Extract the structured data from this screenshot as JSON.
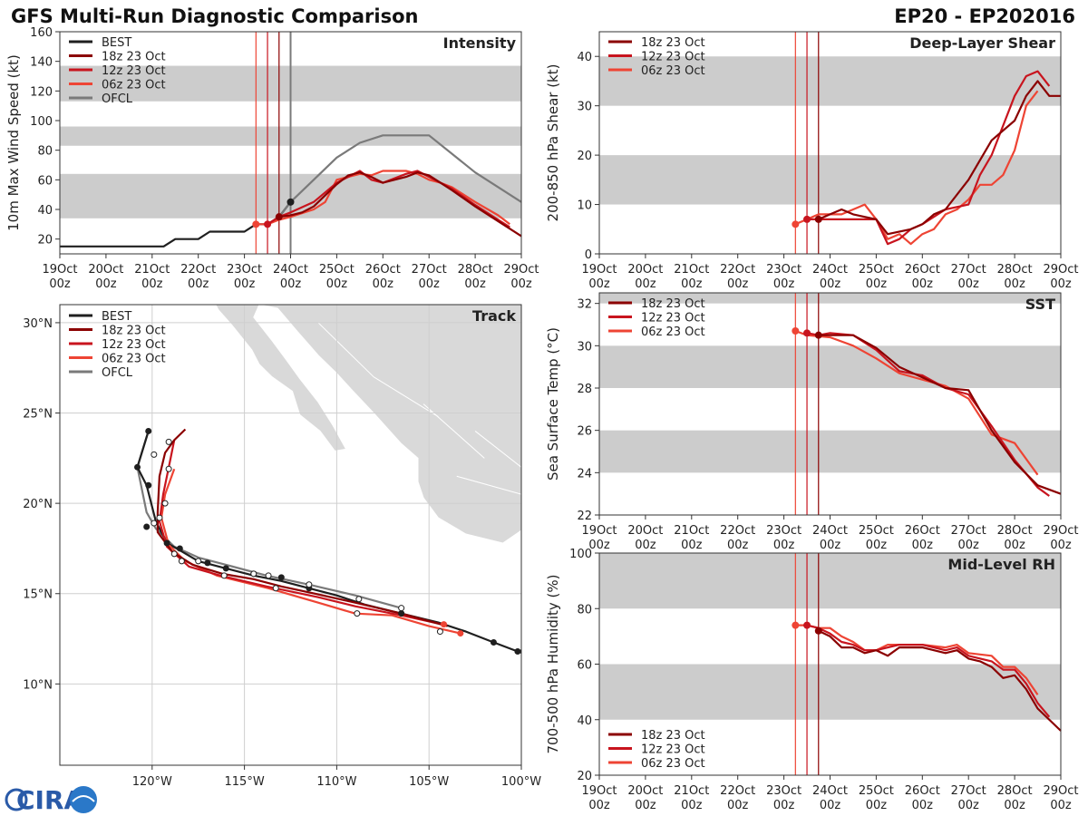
{
  "page": {
    "title_left": "GFS Multi-Run Diagnostic Comparison",
    "title_right": "EP20 - EP202016",
    "logo_text": "CIRA"
  },
  "colors": {
    "best": "#1f1f1f",
    "r18": "#8b0000",
    "r12": "#c8141e",
    "r06": "#ee4434",
    "ofcl": "#7a7a7a",
    "band": "#cccccc",
    "land": "#d9d9d9",
    "grid": "#cfcfcf"
  },
  "time_ticks": [
    "19Oct",
    "20Oct",
    "21Oct",
    "22Oct",
    "23Oct",
    "24Oct",
    "25Oct",
    "26Oct",
    "27Oct",
    "28Oct",
    "29Oct"
  ],
  "time_sub": "00z",
  "run_lines": [
    {
      "x": 4.25,
      "run": "r06"
    },
    {
      "x": 4.5,
      "run": "r12"
    },
    {
      "x": 4.75,
      "run": "r18"
    }
  ],
  "chart_data": [
    {
      "id": "intensity",
      "type": "line",
      "title": "Intensity",
      "ylabel": "10m Max Wind Speed (kt)",
      "xlim": [
        0,
        10
      ],
      "ylim": [
        10,
        160
      ],
      "yticks": [
        20,
        40,
        60,
        80,
        100,
        120,
        140,
        160
      ],
      "bands": [
        [
          34,
          64
        ],
        [
          83,
          96
        ],
        [
          113,
          137
        ]
      ],
      "legend": [
        "BEST",
        "18z 23 Oct",
        "12z 23 Oct",
        "06z 23 Oct",
        "OFCL"
      ],
      "extra_vline": {
        "x": 5.0,
        "color": "#7a7a7a"
      },
      "series": [
        {
          "key": "best",
          "x": [
            0,
            0.25,
            0.5,
            0.75,
            1,
            1.25,
            1.5,
            1.75,
            2,
            2.25,
            2.5,
            2.75,
            3,
            3.25,
            3.5,
            3.75,
            4,
            4.25,
            4.5,
            4.75,
            5
          ],
          "y": [
            15,
            15,
            15,
            15,
            15,
            15,
            15,
            15,
            15,
            15,
            20,
            20,
            20,
            25,
            25,
            25,
            25,
            30,
            30,
            35,
            45
          ]
        },
        {
          "key": "ofcl",
          "x": [
            4.75,
            5,
            5.5,
            6,
            6.5,
            7,
            8,
            9,
            10
          ],
          "y": [
            35,
            45,
            60,
            75,
            85,
            90,
            90,
            65,
            45
          ]
        },
        {
          "key": "r18",
          "x": [
            4.75,
            5,
            5.25,
            5.5,
            6,
            6.25,
            6.5,
            6.75,
            7,
            7.5,
            7.75,
            8,
            8.5,
            9,
            9.5,
            10
          ],
          "y": [
            35,
            36,
            38,
            42,
            57,
            63,
            65,
            62,
            58,
            62,
            65,
            63,
            53,
            42,
            32,
            22
          ]
        },
        {
          "key": "r12",
          "x": [
            4.5,
            4.75,
            5,
            5.5,
            6,
            6.25,
            6.5,
            6.75,
            7,
            7.5,
            7.75,
            8,
            8.5,
            9,
            9.5,
            9.75
          ],
          "y": [
            30,
            35,
            38,
            45,
            58,
            62,
            66,
            60,
            58,
            64,
            66,
            62,
            54,
            43,
            33,
            28
          ]
        },
        {
          "key": "r06",
          "x": [
            4.25,
            4.5,
            4.75,
            5,
            5.5,
            5.75,
            6,
            6.25,
            6.5,
            6.75,
            7,
            7.5,
            7.75,
            8,
            8.25,
            8.5,
            9,
            9.5,
            9.75
          ],
          "y": [
            30,
            30,
            33,
            35,
            40,
            45,
            60,
            62,
            64,
            63,
            66,
            66,
            64,
            60,
            58,
            55,
            45,
            36,
            30
          ]
        }
      ],
      "markers": [
        {
          "key": "best",
          "x": 5.0,
          "y": 45
        },
        {
          "key": "r18",
          "x": 4.75,
          "y": 35
        },
        {
          "key": "r12",
          "x": 4.5,
          "y": 30
        },
        {
          "key": "r06",
          "x": 4.25,
          "y": 30
        }
      ]
    },
    {
      "id": "shear",
      "type": "line",
      "title": "Deep-Layer Shear",
      "ylabel": "200-850 hPa Shear (kt)",
      "xlim": [
        0,
        10
      ],
      "ylim": [
        0,
        45
      ],
      "yticks": [
        0,
        10,
        20,
        30,
        40
      ],
      "bands": [
        [
          10,
          20
        ],
        [
          30,
          40
        ]
      ],
      "legend": [
        "18z 23 Oct",
        "12z 23 Oct",
        "06z 23 Oct"
      ],
      "series": [
        {
          "key": "r18",
          "x": [
            4.75,
            5,
            5.25,
            5.5,
            6,
            6.25,
            6.75,
            7,
            7.25,
            7.5,
            8,
            8.5,
            9,
            9.25,
            9.5,
            9.75,
            10
          ],
          "y": [
            7,
            8,
            9,
            8,
            7,
            4,
            5,
            6,
            8,
            9,
            15,
            23,
            27,
            32,
            35,
            32,
            32
          ]
        },
        {
          "key": "r12",
          "x": [
            4.5,
            4.75,
            5,
            5.25,
            5.5,
            6,
            6.25,
            6.5,
            6.75,
            7,
            7.5,
            8,
            8.25,
            8.5,
            9,
            9.25,
            9.5,
            9.75
          ],
          "y": [
            7,
            7,
            7,
            7,
            7,
            7,
            2,
            3,
            5,
            6,
            9,
            10,
            16,
            20,
            32,
            36,
            37,
            34
          ]
        },
        {
          "key": "r06",
          "x": [
            4.25,
            4.5,
            4.75,
            5,
            5.25,
            5.5,
            5.75,
            6,
            6.25,
            6.5,
            6.75,
            7,
            7.25,
            7.5,
            7.75,
            8,
            8.25,
            8.5,
            8.75,
            9,
            9.25,
            9.5
          ],
          "y": [
            6,
            7,
            8,
            8,
            8,
            9,
            10,
            7,
            3,
            4,
            2,
            4,
            5,
            8,
            9,
            11,
            14,
            14,
            16,
            21,
            30,
            33
          ]
        }
      ],
      "markers": [
        {
          "key": "r18",
          "x": 4.75,
          "y": 7
        },
        {
          "key": "r12",
          "x": 4.5,
          "y": 7
        },
        {
          "key": "r06",
          "x": 4.25,
          "y": 6
        }
      ]
    },
    {
      "id": "sst",
      "type": "line",
      "title": "SST",
      "ylabel": "Sea Surface Temp (°C)",
      "xlim": [
        0,
        10
      ],
      "ylim": [
        22,
        32.5
      ],
      "yticks": [
        22,
        24,
        26,
        28,
        30,
        32
      ],
      "bands": [
        [
          24,
          26
        ],
        [
          28,
          30
        ],
        [
          32,
          32.5
        ]
      ],
      "legend": [
        "18z 23 Oct",
        "12z 23 Oct",
        "06z 23 Oct"
      ],
      "series": [
        {
          "key": "r18",
          "x": [
            4.75,
            5,
            5.5,
            6,
            6.5,
            7,
            7.5,
            8,
            8.5,
            9,
            9.5,
            10
          ],
          "y": [
            30.5,
            30.5,
            30.5,
            29.9,
            29,
            28.5,
            28,
            27.9,
            26,
            24.5,
            23.4,
            23.0
          ]
        },
        {
          "key": "r12",
          "x": [
            4.5,
            4.75,
            5,
            5.5,
            6,
            6.5,
            7,
            7.5,
            8,
            8.5,
            9,
            9.5,
            9.75
          ],
          "y": [
            30.6,
            30.5,
            30.6,
            30.5,
            29.8,
            28.8,
            28.6,
            28,
            27.7,
            26.2,
            24.6,
            23.3,
            22.9
          ]
        },
        {
          "key": "r06",
          "x": [
            4.25,
            4.5,
            5,
            5.5,
            6,
            6.5,
            7,
            7.5,
            8,
            8.5,
            9,
            9.5
          ],
          "y": [
            30.7,
            30.5,
            30.4,
            30.0,
            29.4,
            28.7,
            28.4,
            28.1,
            27.5,
            25.8,
            25.4,
            23.9
          ]
        }
      ],
      "markers": [
        {
          "key": "r18",
          "x": 4.75,
          "y": 30.5
        },
        {
          "key": "r12",
          "x": 4.5,
          "y": 30.6
        },
        {
          "key": "r06",
          "x": 4.25,
          "y": 30.7
        }
      ]
    },
    {
      "id": "rh",
      "type": "line",
      "title": "Mid-Level RH",
      "ylabel": "700-500 hPa Humidity (%)",
      "xlim": [
        0,
        10
      ],
      "ylim": [
        20,
        100
      ],
      "yticks": [
        20,
        40,
        60,
        80,
        100
      ],
      "bands": [
        [
          40,
          60
        ],
        [
          80,
          100
        ]
      ],
      "legend": [
        "18z 23 Oct",
        "12z 23 Oct",
        "06z 23 Oct"
      ],
      "legend_pos": "bottom-left",
      "series": [
        {
          "key": "r18",
          "x": [
            4.75,
            5,
            5.25,
            5.5,
            5.75,
            6,
            6.25,
            6.5,
            7,
            7.5,
            7.75,
            8,
            8.25,
            8.5,
            8.75,
            9,
            9.25,
            9.5,
            10
          ],
          "y": [
            72,
            70,
            66,
            66,
            64,
            65,
            63,
            66,
            66,
            64,
            65,
            62,
            61,
            59,
            55,
            56,
            51,
            44,
            36
          ]
        },
        {
          "key": "r12",
          "x": [
            4.5,
            4.75,
            5,
            5.25,
            5.5,
            5.75,
            6,
            6.5,
            7,
            7.5,
            7.75,
            8,
            8.5,
            8.75,
            9,
            9.25,
            9.5,
            9.75
          ],
          "y": [
            74,
            73,
            71,
            68,
            67,
            65,
            65,
            67,
            67,
            65,
            66,
            63,
            61,
            58,
            58,
            53,
            46,
            41
          ]
        },
        {
          "key": "r06",
          "x": [
            4.25,
            4.5,
            4.75,
            5,
            5.25,
            5.5,
            5.75,
            6,
            6.25,
            6.5,
            7,
            7.5,
            7.75,
            8,
            8.5,
            8.75,
            9,
            9.25,
            9.5
          ],
          "y": [
            74,
            74,
            73,
            73,
            70,
            68,
            65,
            65,
            67,
            67,
            67,
            66,
            67,
            64,
            63,
            59,
            59,
            55,
            49
          ]
        }
      ],
      "markers": [
        {
          "key": "r18",
          "x": 4.75,
          "y": 72
        },
        {
          "key": "r12",
          "x": 4.5,
          "y": 74
        },
        {
          "key": "r06",
          "x": 4.25,
          "y": 74
        }
      ]
    },
    {
      "id": "track",
      "type": "scatter",
      "title": "Track",
      "xlim": [
        -125,
        -100
      ],
      "ylim": [
        5.5,
        31
      ],
      "xticks": [
        -120,
        -115,
        -110,
        -105,
        -100
      ],
      "xtick_labels": [
        "120°W",
        "115°W",
        "110°W",
        "105°W",
        "100°W"
      ],
      "yticks": [
        10,
        15,
        20,
        25,
        30
      ],
      "ytick_labels": [
        "10°N",
        "15°N",
        "20°N",
        "25°N",
        "30°N"
      ],
      "legend": [
        "BEST",
        "18z 23 Oct",
        "12z 23 Oct",
        "06z 23 Oct",
        "OFCL"
      ],
      "series": [
        {
          "key": "best",
          "lon": [
            -99.5,
            -100.2,
            -101.5,
            -103,
            -104.5,
            -106.5,
            -108.5,
            -110,
            -111.5,
            -113,
            -114.5,
            -116,
            -117.5,
            -118.5,
            -119.2,
            -119.8,
            -120.3,
            -120.8,
            -120.2
          ],
          "lat": [
            11.6,
            11.8,
            12.3,
            12.9,
            13.4,
            13.9,
            14.4,
            14.9,
            15.3,
            15.7,
            16.0,
            16.4,
            16.8,
            17.4,
            17.8,
            19.0,
            21.0,
            22.0,
            24.0
          ]
        },
        {
          "key": "ofcl",
          "lon": [
            -106.5,
            -109,
            -111.5,
            -113.8,
            -116,
            -117.5,
            -118.8,
            -119.8,
            -120.3,
            -120.8,
            -120.2
          ],
          "lat": [
            14.2,
            14.9,
            15.5,
            16.0,
            16.6,
            17.0,
            17.6,
            18.6,
            19.5,
            22.0,
            24.0
          ]
        },
        {
          "key": "r18",
          "lon": [
            -104,
            -106.5,
            -109,
            -111.2,
            -113,
            -114.5,
            -116.2,
            -117.8,
            -118.9,
            -119.7,
            -119.7,
            -119.6,
            -119.3,
            -118.8,
            -118.2
          ],
          "lat": [
            13.2,
            13.9,
            14.5,
            15.0,
            15.4,
            15.8,
            16.1,
            16.6,
            17.3,
            18.4,
            19.5,
            21.5,
            22.8,
            23.5,
            24.1
          ]
        },
        {
          "key": "r12",
          "lon": [
            -104.3,
            -106.5,
            -109,
            -111,
            -113.8,
            -116.3,
            -118,
            -119.2,
            -119.6,
            -119.4,
            -119.0,
            -118.8
          ],
          "lat": [
            13.3,
            13.8,
            14.3,
            14.8,
            15.4,
            16.0,
            16.5,
            17.6,
            19.0,
            20.5,
            22.5,
            23.5
          ]
        },
        {
          "key": "r06",
          "lon": [
            -103.3,
            -105,
            -107,
            -109,
            -111,
            -113.7,
            -116.5,
            -118.2,
            -119.1,
            -119.5,
            -119.3,
            -118.8
          ],
          "lat": [
            12.8,
            13.2,
            13.8,
            13.9,
            14.5,
            15.3,
            16.0,
            16.8,
            17.7,
            19.2,
            20.5,
            21.9
          ]
        }
      ],
      "markers": [
        {
          "key": "best",
          "pts": [
            [
              -100.2,
              11.8
            ],
            [
              -101.5,
              12.3
            ],
            [
              -106.5,
              13.9
            ],
            [
              -111.5,
              15.3
            ],
            [
              -113,
              15.9
            ],
            [
              -114.5,
              16.1
            ],
            [
              -116,
              16.4
            ],
            [
              -117,
              16.7
            ],
            [
              -118.5,
              17.5
            ],
            [
              -119.2,
              17.8
            ],
            [
              -120.3,
              18.7
            ],
            [
              -120.2,
              21.0
            ],
            [
              -120.8,
              22.0
            ],
            [
              -120.2,
              24.0
            ]
          ]
        },
        {
          "key": "r06",
          "pts": [
            [
              -103.3,
              12.8
            ],
            [
              -104.2,
              13.3
            ]
          ]
        },
        {
          "key": "open",
          "pts": [
            [
              -99.9,
              11.8
            ],
            [
              -104.4,
              12.9
            ],
            [
              -106.5,
              14.2
            ],
            [
              -108.8,
              14.7
            ],
            [
              -111.5,
              15.5
            ],
            [
              -113.7,
              16.0
            ],
            [
              -114.5,
              16.1
            ],
            [
              -117.5,
              16.8
            ],
            [
              -118.8,
              17.2
            ],
            [
              -119.9,
              18.9
            ],
            [
              -119.3,
              20.0
            ],
            [
              -119.1,
              21.9
            ],
            [
              -119.1,
              23.4
            ],
            [
              -119.9,
              22.7
            ],
            [
              -108.9,
              13.9
            ],
            [
              -113.3,
              15.3
            ],
            [
              -116.1,
              16.0
            ],
            [
              -118.4,
              16.8
            ],
            [
              -119.6,
              19.2
            ]
          ]
        }
      ]
    }
  ]
}
